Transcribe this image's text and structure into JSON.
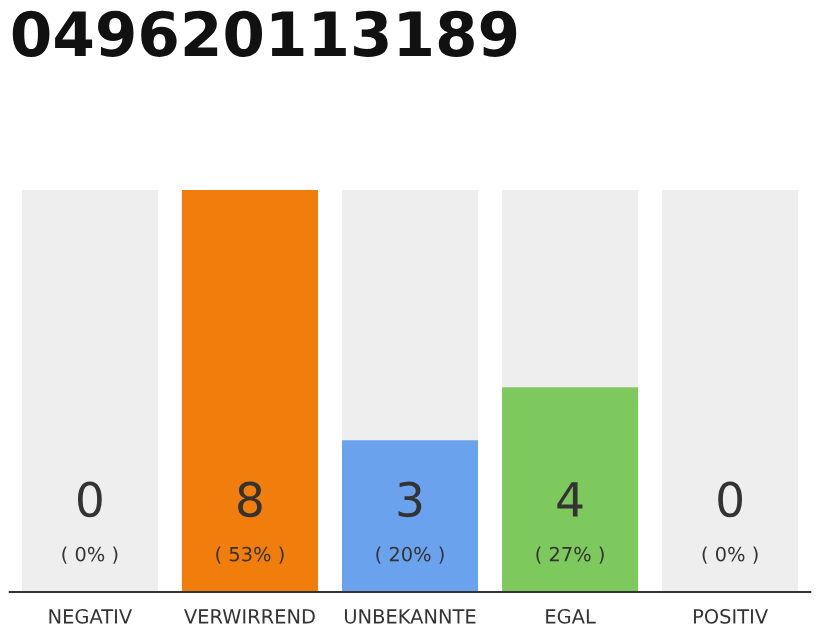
{
  "chart_data": {
    "type": "bar",
    "title": "049620113189",
    "categories": [
      "NEGATIV",
      "VERWIRREND",
      "UNBEKANNTE",
      "EGAL",
      "POSITIV"
    ],
    "values": [
      0,
      53,
      20,
      27,
      0
    ],
    "colors": [
      "#bdbdbd",
      "#f07d0c",
      "#6ba2ed",
      "#7dc95e",
      "#bdbdbd"
    ],
    "value_labels": [
      "( 0% )",
      "( 53% )",
      "( 20% )",
      "( 27% )",
      "( 0% )"
    ],
    "annotations": [
      "0",
      "8",
      "3",
      "4",
      "0"
    ],
    "bands": [
      {
        "axis": "x",
        "from": "NEGATIV",
        "to": "NEGATIV",
        "color": "#eeeeee"
      },
      {
        "axis": "x",
        "from": "UNBEKANNTE",
        "to": "UNBEKANNTE",
        "color": "#eeeeee"
      },
      {
        "axis": "x",
        "from": "EGAL",
        "to": "EGAL",
        "color": "#eeeeee"
      },
      {
        "axis": "x",
        "from": "POSITIV",
        "to": "POSITIV",
        "color": "#eeeeee"
      }
    ],
    "grid": false
  }
}
